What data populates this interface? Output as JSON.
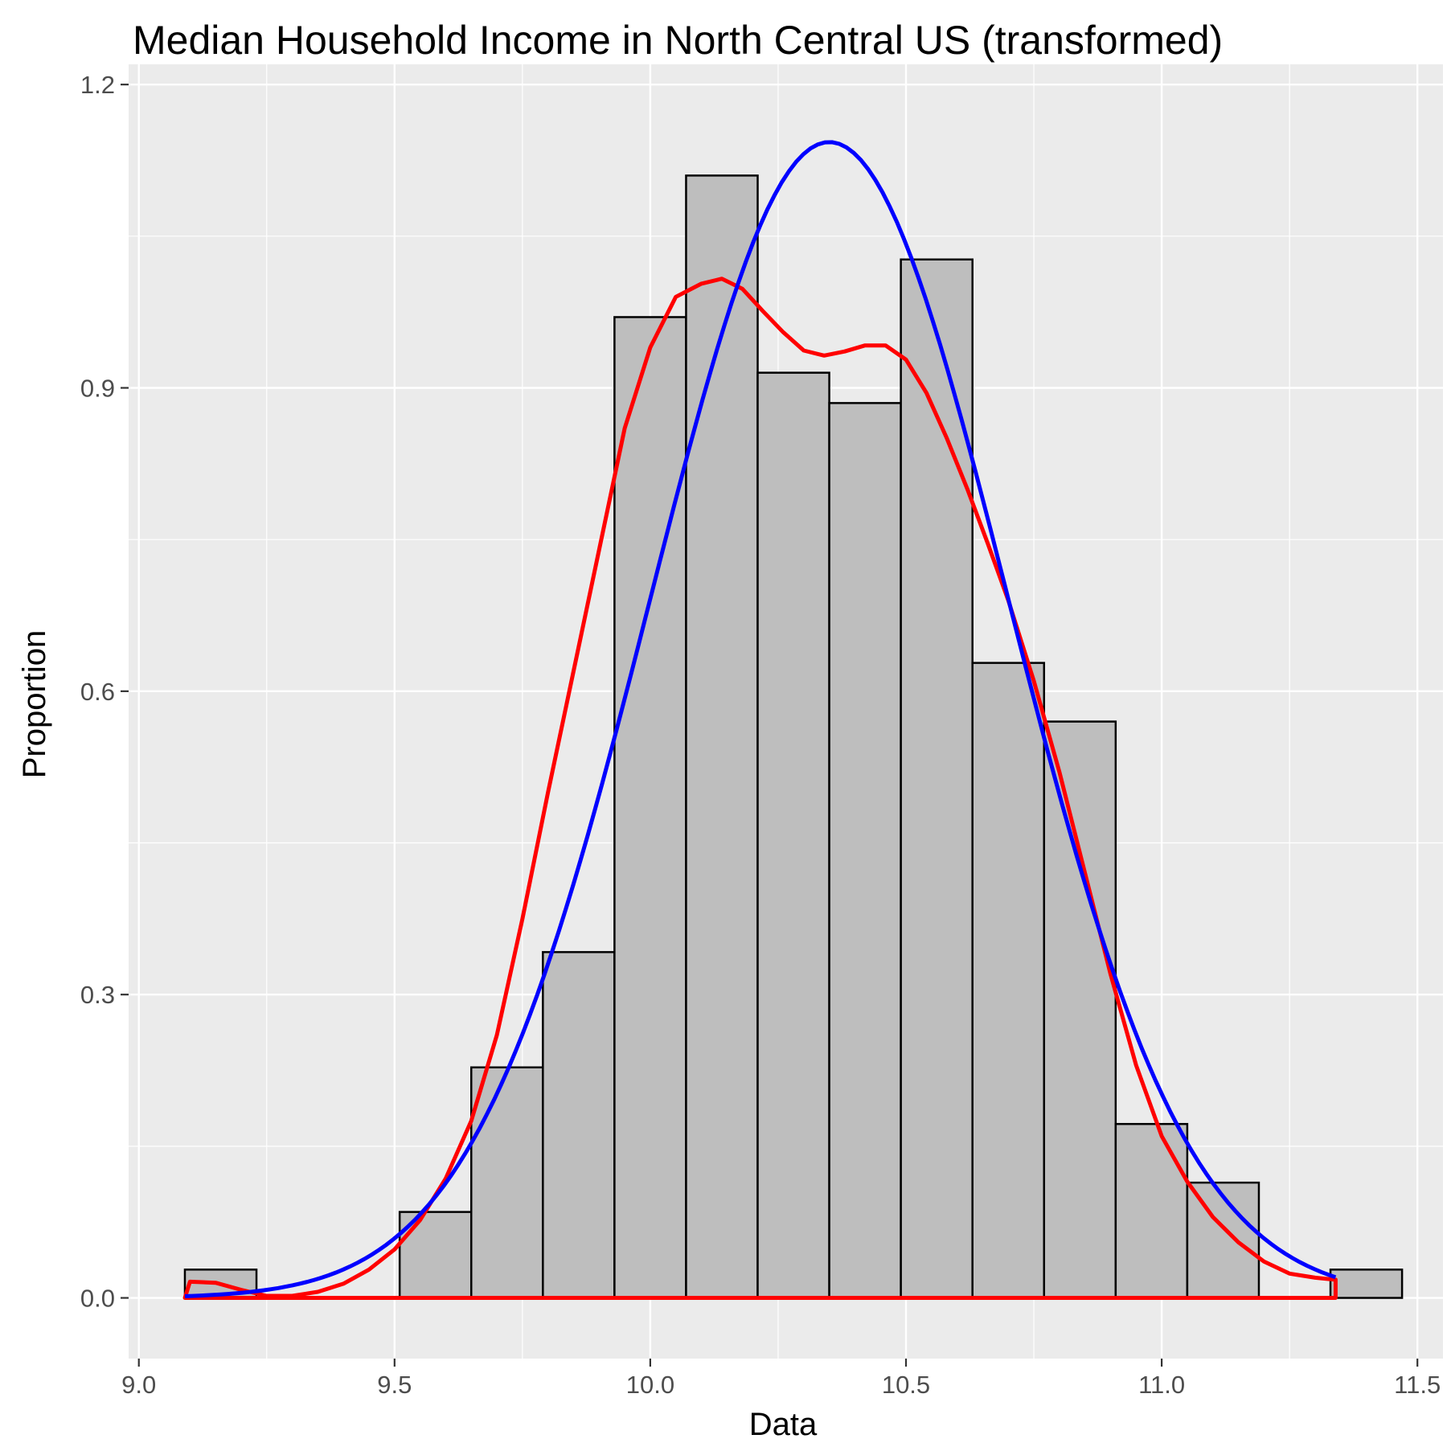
{
  "chart_data": {
    "type": "histogram",
    "title": "Median Household Income in North Central US (transformed)",
    "xlabel": "Data",
    "ylabel": "Proportion",
    "xlim": [
      8.98,
      11.55
    ],
    "ylim": [
      -0.06,
      1.22
    ],
    "x_ticks": [
      "9.0",
      "9.5",
      "10.0",
      "10.5",
      "11.0",
      "11.5"
    ],
    "x_tick_values": [
      9.0,
      9.5,
      10.0,
      10.5,
      11.0,
      11.5
    ],
    "y_ticks": [
      "0.0",
      "0.3",
      "0.6",
      "0.9",
      "1.2"
    ],
    "y_tick_values": [
      0.0,
      0.3,
      0.6,
      0.9,
      1.2
    ],
    "grid": true,
    "legend": "none",
    "bars": [
      {
        "x0": 9.09,
        "x1": 9.23,
        "value": 0.028
      },
      {
        "x0": 9.23,
        "x1": 9.37,
        "value": 0.0
      },
      {
        "x0": 9.37,
        "x1": 9.51,
        "value": 0.0
      },
      {
        "x0": 9.51,
        "x1": 9.65,
        "value": 0.085
      },
      {
        "x0": 9.65,
        "x1": 9.79,
        "value": 0.228
      },
      {
        "x0": 9.79,
        "x1": 9.93,
        "value": 0.342
      },
      {
        "x0": 9.93,
        "x1": 10.07,
        "value": 0.97
      },
      {
        "x0": 10.07,
        "x1": 10.21,
        "value": 1.11
      },
      {
        "x0": 10.21,
        "x1": 10.35,
        "value": 0.915
      },
      {
        "x0": 10.35,
        "x1": 10.49,
        "value": 0.885
      },
      {
        "x0": 10.49,
        "x1": 10.63,
        "value": 1.027
      },
      {
        "x0": 10.63,
        "x1": 10.77,
        "value": 0.628
      },
      {
        "x0": 10.77,
        "x1": 10.91,
        "value": 0.57
      },
      {
        "x0": 10.91,
        "x1": 11.05,
        "value": 0.172
      },
      {
        "x0": 11.05,
        "x1": 11.19,
        "value": 0.114
      },
      {
        "x0": 11.19,
        "x1": 11.33,
        "value": 0.0
      },
      {
        "x0": 11.33,
        "x1": 11.47,
        "value": 0.028
      }
    ],
    "series": [
      {
        "color": "#ff0000",
        "style": "density",
        "x": [
          9.09,
          9.1,
          9.15,
          9.2,
          9.25,
          9.3,
          9.35,
          9.4,
          9.45,
          9.5,
          9.55,
          9.6,
          9.65,
          9.7,
          9.75,
          9.8,
          9.85,
          9.9,
          9.95,
          10.0,
          10.05,
          10.1,
          10.14,
          10.18,
          10.22,
          10.26,
          10.3,
          10.34,
          10.38,
          10.42,
          10.46,
          10.5,
          10.54,
          10.58,
          10.62,
          10.66,
          10.7,
          10.75,
          10.8,
          10.85,
          10.9,
          10.95,
          11.0,
          11.05,
          11.1,
          11.15,
          11.2,
          11.25,
          11.3,
          11.34
        ],
        "y": [
          0.0,
          0.016,
          0.015,
          0.008,
          0.002,
          0.002,
          0.006,
          0.014,
          0.028,
          0.048,
          0.077,
          0.118,
          0.175,
          0.26,
          0.375,
          0.5,
          0.62,
          0.74,
          0.86,
          0.94,
          0.99,
          1.003,
          1.008,
          0.998,
          0.976,
          0.955,
          0.937,
          0.932,
          0.936,
          0.942,
          0.942,
          0.928,
          0.895,
          0.85,
          0.8,
          0.746,
          0.69,
          0.61,
          0.52,
          0.42,
          0.32,
          0.23,
          0.16,
          0.115,
          0.08,
          0.055,
          0.036,
          0.024,
          0.02,
          0.018
        ]
      },
      {
        "color": "#0000ff",
        "style": "normal-fit",
        "mean": 10.35,
        "sd": 0.349,
        "x_range": [
          9.09,
          11.34
        ]
      }
    ]
  }
}
